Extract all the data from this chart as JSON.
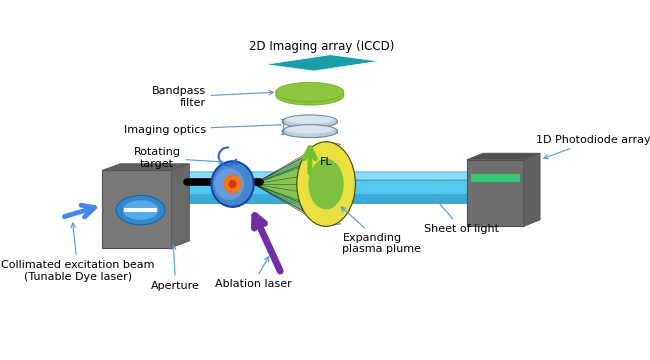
{
  "labels": {
    "iccd": "2D Imaging array (ICCD)",
    "bandpass": "Bandpass\nfilter",
    "imaging_optics": "Imaging optics",
    "fl": "FL",
    "rotating_target": "Rotating\ntarget",
    "photodiode": "1D Photodiode array",
    "sheet_of_light": "Sheet of light",
    "plasma_plume": "Expanding\nplasma plume",
    "ablation_laser": "Ablation laser",
    "aperture": "Aperture",
    "collimated": "Collimated excitation beam\n(Tunable Dye laser)"
  },
  "colors": {
    "iccd_color": "#1a9faa",
    "bandpass_color": "#8dc63f",
    "bandpass_edge": "#6aaa20",
    "lens_color": "#b8ccd8",
    "lens_dark": "#7090a8",
    "blue_beam": "#55c8f0",
    "blue_beam_top": "#80d8f8",
    "blue_beam_dark": "#2090c0",
    "gray_plate": "#787878",
    "gray_dark": "#505050",
    "gray_light": "#909090",
    "disk_blue": "#4488cc",
    "disk_mid": "#2266aa",
    "disk_edge": "#1144aa",
    "plume_yellow": "#e8e040",
    "plume_green": "#80c040",
    "plume_red": "#e03020",
    "plume_orange": "#f07818",
    "cone_yellow": "#f0e870",
    "cone_green": "#88c850",
    "cone_teal": "#50a878",
    "black": "#000000",
    "purple_arrow": "#7030a0",
    "blue_arrow": "#4488ee",
    "green_arrow": "#70c030",
    "ann_line": "#5599cc",
    "bg": "#ffffff",
    "pd_strip": "#30c878"
  },
  "figsize": [
    6.5,
    3.6
  ],
  "dpi": 100
}
